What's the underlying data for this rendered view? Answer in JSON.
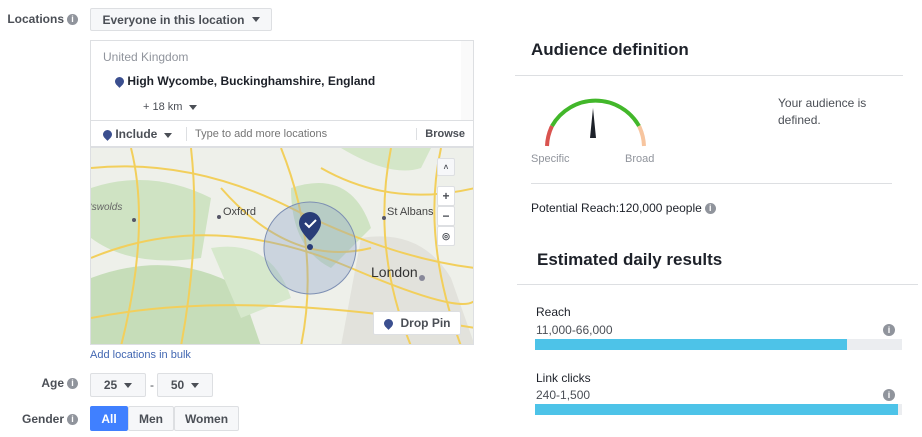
{
  "locations": {
    "label": "Locations",
    "audience_type": "Everyone in this location",
    "country": "United Kingdom",
    "place": "High Wycombe, Buckinghamshire, England",
    "radius": "+ 18 km",
    "include_label": "Include",
    "search_placeholder": "Type to add more locations",
    "browse": "Browse",
    "add_bulk": "Add locations in bulk"
  },
  "map": {
    "labels": [
      "tswolds",
      "Oxford",
      "St Albans",
      "London"
    ],
    "zoom_in": "+",
    "zoom_out": "−",
    "drop_pin": "Drop Pin"
  },
  "age": {
    "label": "Age",
    "min": "25",
    "max": "50",
    "separator": "-"
  },
  "gender": {
    "label": "Gender",
    "options": [
      "All",
      "Men",
      "Women"
    ],
    "selected": "All"
  },
  "audience": {
    "title": "Audience definition",
    "specific": "Specific",
    "broad": "Broad",
    "status": "Your audience is defined.",
    "potential_reach": "Potential Reach:120,000 people"
  },
  "daily": {
    "title": "Estimated daily results",
    "metrics": [
      {
        "label": "Reach",
        "value": "11,000-66,000",
        "fill_percent": 85
      },
      {
        "label": "Link clicks",
        "value": "240-1,500",
        "fill_percent": 99
      }
    ]
  },
  "colors": {
    "accent": "#4080ff",
    "bar": "#4dc3e8",
    "pin": "#3b4f8f"
  }
}
